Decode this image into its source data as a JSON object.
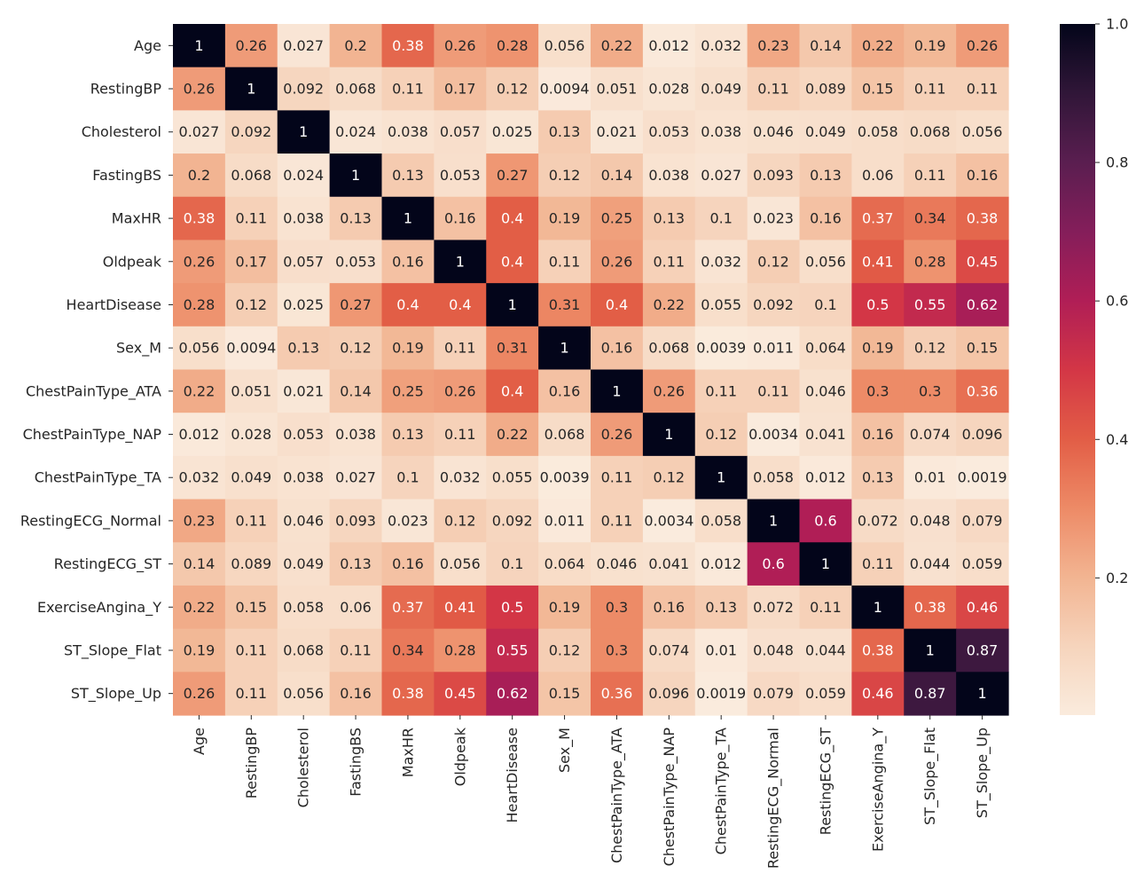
{
  "chart_data": {
    "type": "heatmap",
    "title": "",
    "xlabel": "",
    "ylabel": "",
    "colormap": "rocket_r",
    "colorbar": {
      "range": [
        0.0019,
        1.0
      ],
      "ticks": [
        0.2,
        0.4,
        0.6,
        0.8,
        1.0
      ],
      "tick_labels": [
        "0.2",
        "0.4",
        "0.6",
        "0.8",
        "1.0"
      ],
      "placement": "right"
    },
    "labels": [
      "Age",
      "RestingBP",
      "Cholesterol",
      "FastingBS",
      "MaxHR",
      "Oldpeak",
      "HeartDisease",
      "Sex_M",
      "ChestPainType_ATA",
      "ChestPainType_NAP",
      "ChestPainType_TA",
      "RestingECG_Normal",
      "RestingECG_ST",
      "ExerciseAngina_Y",
      "ST_Slope_Flat",
      "ST_Slope_Up"
    ],
    "matrix": [
      [
        1,
        0.26,
        0.027,
        0.2,
        0.38,
        0.26,
        0.28,
        0.056,
        0.22,
        0.012,
        0.032,
        0.23,
        0.14,
        0.22,
        0.19,
        0.26
      ],
      [
        0.26,
        1,
        0.092,
        0.068,
        0.11,
        0.17,
        0.12,
        0.0094,
        0.051,
        0.028,
        0.049,
        0.11,
        0.089,
        0.15,
        0.11,
        0.11
      ],
      [
        0.027,
        0.092,
        1,
        0.024,
        0.038,
        0.057,
        0.025,
        0.13,
        0.021,
        0.053,
        0.038,
        0.046,
        0.049,
        0.058,
        0.068,
        0.056
      ],
      [
        0.2,
        0.068,
        0.024,
        1,
        0.13,
        0.053,
        0.27,
        0.12,
        0.14,
        0.038,
        0.027,
        0.093,
        0.13,
        0.06,
        0.11,
        0.16
      ],
      [
        0.38,
        0.11,
        0.038,
        0.13,
        1,
        0.16,
        0.4,
        0.19,
        0.25,
        0.13,
        0.1,
        0.023,
        0.16,
        0.37,
        0.34,
        0.38
      ],
      [
        0.26,
        0.17,
        0.057,
        0.053,
        0.16,
        1,
        0.4,
        0.11,
        0.26,
        0.11,
        0.032,
        0.12,
        0.056,
        0.41,
        0.28,
        0.45
      ],
      [
        0.28,
        0.12,
        0.025,
        0.27,
        0.4,
        0.4,
        1,
        0.31,
        0.4,
        0.22,
        0.055,
        0.092,
        0.1,
        0.5,
        0.55,
        0.62
      ],
      [
        0.056,
        0.0094,
        0.13,
        0.12,
        0.19,
        0.11,
        0.31,
        1,
        0.16,
        0.068,
        0.0039,
        0.011,
        0.064,
        0.19,
        0.12,
        0.15
      ],
      [
        0.22,
        0.051,
        0.021,
        0.14,
        0.25,
        0.26,
        0.4,
        0.16,
        1,
        0.26,
        0.11,
        0.11,
        0.046,
        0.3,
        0.3,
        0.36
      ],
      [
        0.012,
        0.028,
        0.053,
        0.038,
        0.13,
        0.11,
        0.22,
        0.068,
        0.26,
        1,
        0.12,
        0.0034,
        0.041,
        0.16,
        0.074,
        0.096
      ],
      [
        0.032,
        0.049,
        0.038,
        0.027,
        0.1,
        0.032,
        0.055,
        0.0039,
        0.11,
        0.12,
        1,
        0.058,
        0.012,
        0.13,
        0.01,
        0.0019
      ],
      [
        0.23,
        0.11,
        0.046,
        0.093,
        0.023,
        0.12,
        0.092,
        0.011,
        0.11,
        0.0034,
        0.058,
        1,
        0.6,
        0.072,
        0.048,
        0.079
      ],
      [
        0.14,
        0.089,
        0.049,
        0.13,
        0.16,
        0.056,
        0.1,
        0.064,
        0.046,
        0.041,
        0.012,
        0.6,
        1,
        0.11,
        0.044,
        0.059
      ],
      [
        0.22,
        0.15,
        0.058,
        0.06,
        0.37,
        0.41,
        0.5,
        0.19,
        0.3,
        0.16,
        0.13,
        0.072,
        0.11,
        1,
        0.38,
        0.46
      ],
      [
        0.19,
        0.11,
        0.068,
        0.11,
        0.34,
        0.28,
        0.55,
        0.12,
        0.3,
        0.074,
        0.01,
        0.048,
        0.044,
        0.38,
        1,
        0.87
      ],
      [
        0.26,
        0.11,
        0.056,
        0.16,
        0.38,
        0.45,
        0.62,
        0.15,
        0.36,
        0.096,
        0.0019,
        0.079,
        0.059,
        0.46,
        0.87,
        1
      ]
    ],
    "annotations": true,
    "grid": false
  }
}
